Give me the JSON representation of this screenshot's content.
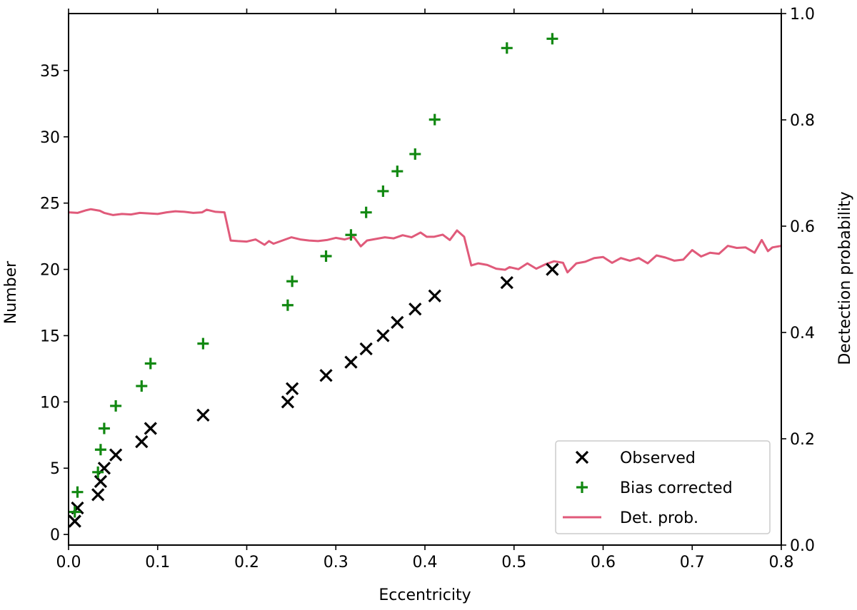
{
  "chart_data": {
    "type": "scatter",
    "xlabel": "Eccentricity",
    "ylabel": "Number",
    "y2label": "Dectection probability",
    "xlim": [
      0.0,
      0.8
    ],
    "ylim": [
      -0.8,
      39.3
    ],
    "y2lim": [
      0.0,
      1.0
    ],
    "x_ticks": [
      "0.0",
      "0.1",
      "0.2",
      "0.3",
      "0.4",
      "0.5",
      "0.6",
      "0.7",
      "0.8"
    ],
    "y_ticks": [
      "0",
      "5",
      "10",
      "15",
      "20",
      "25",
      "30",
      "35"
    ],
    "y2_ticks": [
      "0.0",
      "0.2",
      "0.4",
      "0.6",
      "0.8",
      "1.0"
    ],
    "grid": false,
    "legend_position": "lower-right",
    "series": [
      {
        "name": "Observed",
        "marker": "x",
        "color": "#000000",
        "axis": "left",
        "points": [
          [
            0.007,
            1
          ],
          [
            0.01,
            2
          ],
          [
            0.033,
            3
          ],
          [
            0.036,
            4
          ],
          [
            0.04,
            5
          ],
          [
            0.053,
            6
          ],
          [
            0.082,
            7
          ],
          [
            0.092,
            8
          ],
          [
            0.151,
            9
          ],
          [
            0.246,
            10
          ],
          [
            0.251,
            11
          ],
          [
            0.289,
            12
          ],
          [
            0.317,
            13
          ],
          [
            0.334,
            14
          ],
          [
            0.353,
            15
          ],
          [
            0.369,
            16
          ],
          [
            0.389,
            17
          ],
          [
            0.411,
            18
          ],
          [
            0.492,
            19
          ],
          [
            0.543,
            20
          ]
        ]
      },
      {
        "name": "Bias corrected",
        "marker": "+",
        "color": "#118811",
        "axis": "left",
        "points": [
          [
            0.007,
            1.7
          ],
          [
            0.01,
            3.2
          ],
          [
            0.033,
            4.7
          ],
          [
            0.036,
            6.4
          ],
          [
            0.04,
            8.0
          ],
          [
            0.053,
            9.7
          ],
          [
            0.082,
            11.2
          ],
          [
            0.092,
            12.9
          ],
          [
            0.151,
            14.4
          ],
          [
            0.246,
            17.3
          ],
          [
            0.251,
            19.1
          ],
          [
            0.289,
            21.0
          ],
          [
            0.317,
            22.6
          ],
          [
            0.334,
            24.3
          ],
          [
            0.353,
            25.9
          ],
          [
            0.369,
            27.4
          ],
          [
            0.389,
            28.7
          ],
          [
            0.411,
            31.3
          ],
          [
            0.492,
            36.7
          ],
          [
            0.543,
            37.4
          ]
        ]
      },
      {
        "name": "Det. prob.",
        "marker": "line",
        "color": "#e05a7a",
        "axis": "right",
        "points": [
          [
            0.0,
            0.626
          ],
          [
            0.01,
            0.625
          ],
          [
            0.02,
            0.63
          ],
          [
            0.025,
            0.632
          ],
          [
            0.035,
            0.629
          ],
          [
            0.04,
            0.625
          ],
          [
            0.05,
            0.621
          ],
          [
            0.06,
            0.623
          ],
          [
            0.07,
            0.622
          ],
          [
            0.08,
            0.625
          ],
          [
            0.09,
            0.624
          ],
          [
            0.1,
            0.623
          ],
          [
            0.11,
            0.626
          ],
          [
            0.12,
            0.628
          ],
          [
            0.13,
            0.627
          ],
          [
            0.14,
            0.625
          ],
          [
            0.15,
            0.626
          ],
          [
            0.155,
            0.631
          ],
          [
            0.16,
            0.629
          ],
          [
            0.165,
            0.627
          ],
          [
            0.175,
            0.626
          ],
          [
            0.182,
            0.573
          ],
          [
            0.19,
            0.572
          ],
          [
            0.2,
            0.571
          ],
          [
            0.21,
            0.575
          ],
          [
            0.22,
            0.565
          ],
          [
            0.225,
            0.572
          ],
          [
            0.23,
            0.567
          ],
          [
            0.24,
            0.573
          ],
          [
            0.25,
            0.579
          ],
          [
            0.26,
            0.575
          ],
          [
            0.27,
            0.573
          ],
          [
            0.28,
            0.572
          ],
          [
            0.29,
            0.574
          ],
          [
            0.3,
            0.578
          ],
          [
            0.31,
            0.575
          ],
          [
            0.32,
            0.58
          ],
          [
            0.328,
            0.562
          ],
          [
            0.335,
            0.573
          ],
          [
            0.345,
            0.576
          ],
          [
            0.355,
            0.579
          ],
          [
            0.365,
            0.577
          ],
          [
            0.375,
            0.583
          ],
          [
            0.385,
            0.579
          ],
          [
            0.395,
            0.588
          ],
          [
            0.402,
            0.58
          ],
          [
            0.41,
            0.58
          ],
          [
            0.42,
            0.584
          ],
          [
            0.428,
            0.574
          ],
          [
            0.436,
            0.592
          ],
          [
            0.444,
            0.58
          ],
          [
            0.452,
            0.526
          ],
          [
            0.46,
            0.53
          ],
          [
            0.47,
            0.527
          ],
          [
            0.48,
            0.52
          ],
          [
            0.49,
            0.518
          ],
          [
            0.495,
            0.523
          ],
          [
            0.505,
            0.519
          ],
          [
            0.515,
            0.53
          ],
          [
            0.525,
            0.52
          ],
          [
            0.535,
            0.528
          ],
          [
            0.545,
            0.534
          ],
          [
            0.555,
            0.531
          ],
          [
            0.56,
            0.513
          ],
          [
            0.57,
            0.53
          ],
          [
            0.58,
            0.533
          ],
          [
            0.59,
            0.54
          ],
          [
            0.6,
            0.542
          ],
          [
            0.61,
            0.531
          ],
          [
            0.62,
            0.54
          ],
          [
            0.63,
            0.535
          ],
          [
            0.64,
            0.54
          ],
          [
            0.65,
            0.53
          ],
          [
            0.66,
            0.545
          ],
          [
            0.67,
            0.541
          ],
          [
            0.68,
            0.535
          ],
          [
            0.69,
            0.537
          ],
          [
            0.7,
            0.555
          ],
          [
            0.71,
            0.543
          ],
          [
            0.72,
            0.55
          ],
          [
            0.73,
            0.548
          ],
          [
            0.74,
            0.563
          ],
          [
            0.75,
            0.559
          ],
          [
            0.76,
            0.56
          ],
          [
            0.77,
            0.55
          ],
          [
            0.778,
            0.574
          ],
          [
            0.785,
            0.553
          ],
          [
            0.79,
            0.56
          ],
          [
            0.8,
            0.563
          ]
        ]
      }
    ]
  }
}
